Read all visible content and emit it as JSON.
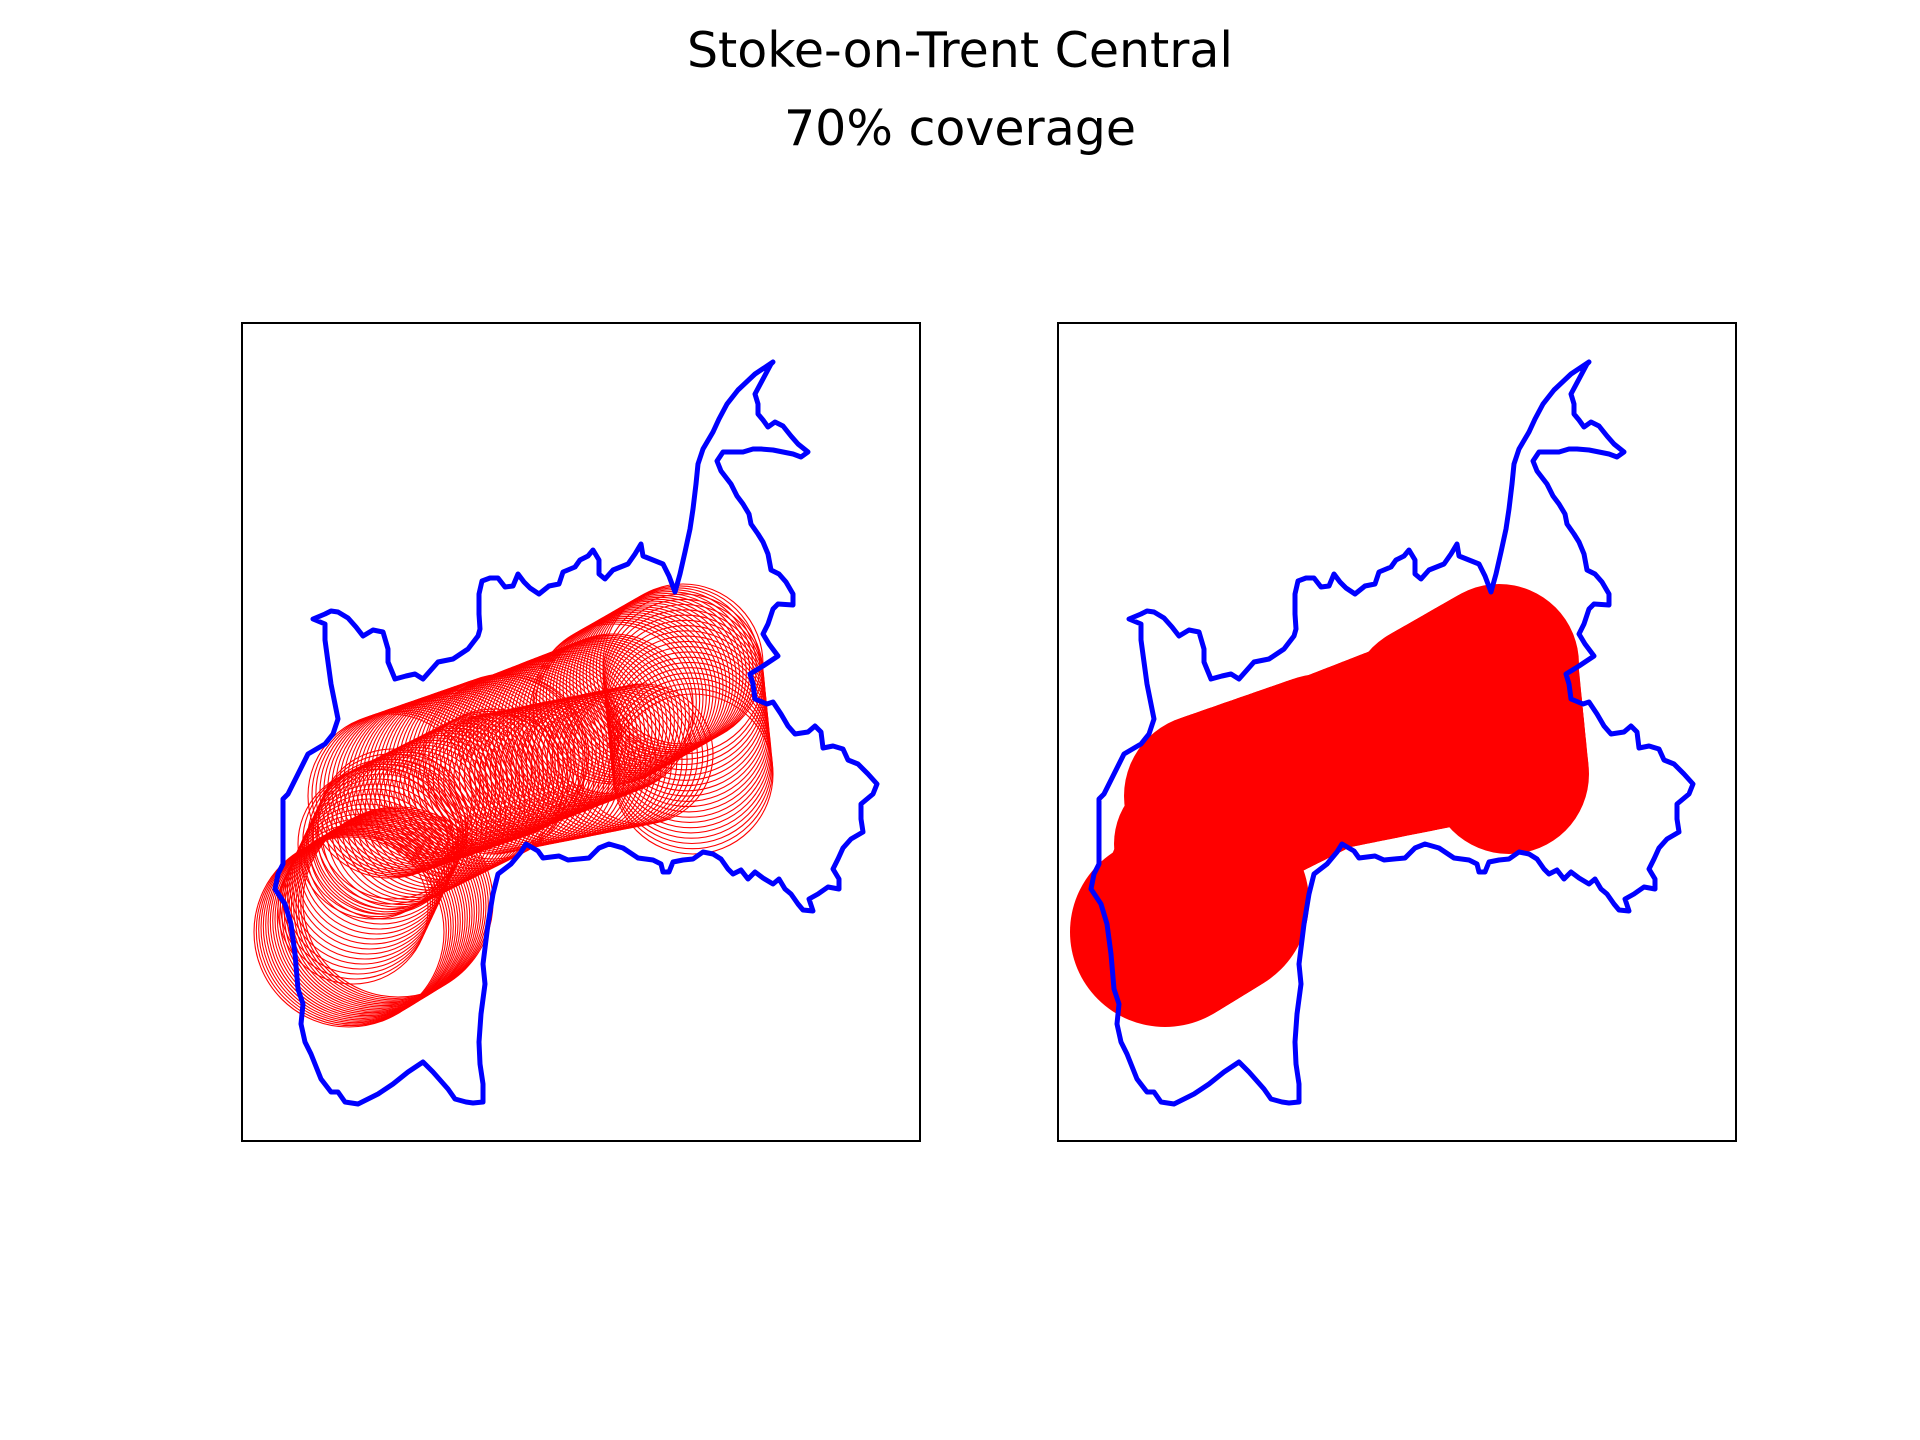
{
  "figure": {
    "title": "Stoke-on-Trent Central",
    "subtitle": "70% coverage"
  },
  "colors": {
    "boundary": "#0000ff",
    "coverage": "#ff0000",
    "frame": "#000000",
    "background": "#ffffff"
  },
  "panels": [
    {
      "id": "left",
      "style": "circle-outlines"
    },
    {
      "id": "right",
      "style": "filled-union"
    }
  ]
}
